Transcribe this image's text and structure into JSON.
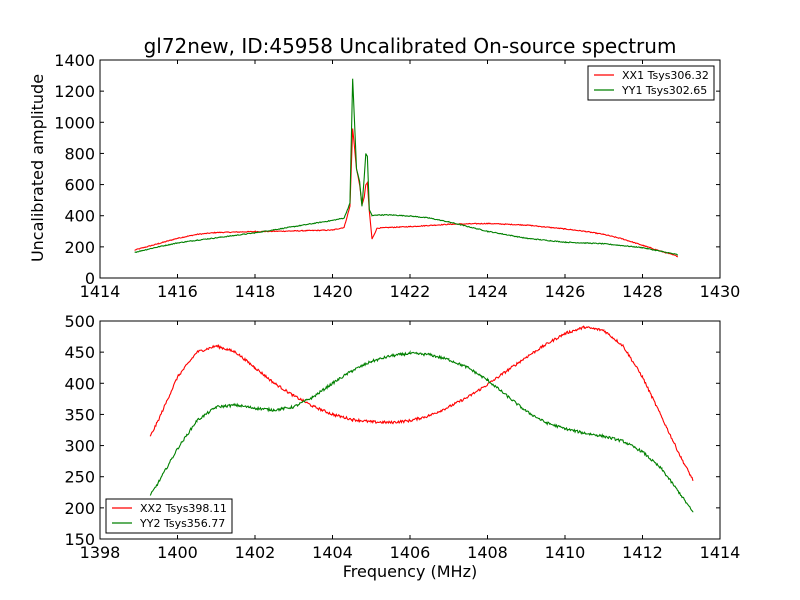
{
  "figure": {
    "title": "gl72new, ID:45958 Uncalibrated On-source spectrum",
    "xlabel": "Frequency (MHz)",
    "ylabel": "Uncalibrated amplitude"
  },
  "colors": {
    "red": "#ff0000",
    "green": "#008000"
  },
  "chart_data": [
    {
      "type": "line",
      "title": "gl72new, ID:45958 Uncalibrated On-source spectrum",
      "xlabel": "",
      "ylabel": "Uncalibrated amplitude",
      "xlim": [
        1414,
        1430
      ],
      "ylim": [
        0,
        1400
      ],
      "xticks": [
        1414,
        1416,
        1418,
        1420,
        1422,
        1424,
        1426,
        1428,
        1430
      ],
      "yticks": [
        0,
        200,
        400,
        600,
        800,
        1000,
        1200,
        1400
      ],
      "legend_position": "top-right",
      "grid": false,
      "series": [
        {
          "name": "XX1 Tsys306.32",
          "color": "#ff0000",
          "x": [
            1414.9,
            1415.5,
            1416,
            1416.5,
            1417,
            1418,
            1419,
            1420,
            1420.3,
            1420.45,
            1420.52,
            1420.56,
            1420.62,
            1420.7,
            1420.76,
            1420.82,
            1420.86,
            1420.9,
            1420.95,
            1421.02,
            1421.15,
            1421.5,
            1422,
            1423,
            1424,
            1425,
            1426,
            1426.5,
            1427,
            1427.5,
            1428,
            1428.5,
            1428.9
          ],
          "y": [
            180,
            220,
            255,
            280,
            292,
            298,
            302,
            308,
            325,
            460,
            960,
            860,
            700,
            600,
            470,
            520,
            600,
            610,
            430,
            250,
            320,
            325,
            330,
            345,
            350,
            340,
            315,
            300,
            280,
            250,
            210,
            170,
            140
          ]
        },
        {
          "name": "YY1 Tsys302.65",
          "color": "#008000",
          "x": [
            1414.9,
            1415.5,
            1416,
            1416.5,
            1417,
            1418,
            1419,
            1420,
            1420.3,
            1420.45,
            1420.52,
            1420.56,
            1420.62,
            1420.7,
            1420.76,
            1420.82,
            1420.86,
            1420.9,
            1420.95,
            1421.02,
            1421.15,
            1421.5,
            1422,
            1422.5,
            1423,
            1424,
            1425,
            1426,
            1427,
            1428,
            1428.5,
            1428.9
          ],
          "y": [
            165,
            200,
            225,
            243,
            258,
            290,
            330,
            370,
            385,
            480,
            1280,
            1050,
            700,
            620,
            460,
            650,
            800,
            780,
            440,
            400,
            405,
            405,
            398,
            385,
            360,
            300,
            255,
            230,
            220,
            195,
            170,
            150
          ]
        }
      ]
    },
    {
      "type": "line",
      "title": "",
      "xlabel": "Frequency (MHz)",
      "ylabel": "",
      "xlim": [
        1398,
        1414
      ],
      "ylim": [
        150,
        500
      ],
      "xticks": [
        1398,
        1400,
        1402,
        1404,
        1406,
        1408,
        1410,
        1412,
        1414
      ],
      "yticks": [
        150,
        200,
        250,
        300,
        350,
        400,
        450,
        500
      ],
      "legend_position": "bottom-left",
      "grid": false,
      "series": [
        {
          "name": "XX2 Tsys398.11",
          "color": "#ff0000",
          "x": [
            1399.3,
            1399.5,
            1400,
            1400.5,
            1401,
            1401.5,
            1402,
            1402.5,
            1403,
            1403.5,
            1404,
            1404.5,
            1405,
            1405.5,
            1406,
            1406.5,
            1407,
            1407.5,
            1408,
            1408.5,
            1409,
            1409.5,
            1410,
            1410.5,
            1411,
            1411.5,
            1412,
            1412.5,
            1413,
            1413.3
          ],
          "y": [
            315,
            340,
            410,
            450,
            460,
            450,
            425,
            400,
            380,
            363,
            350,
            342,
            338,
            337,
            340,
            348,
            362,
            378,
            398,
            420,
            442,
            462,
            480,
            490,
            485,
            460,
            410,
            345,
            280,
            245
          ]
        },
        {
          "name": "YY2 Tsys356.77",
          "color": "#008000",
          "x": [
            1399.3,
            1399.5,
            1400,
            1400.5,
            1401,
            1401.5,
            1402,
            1402.5,
            1403,
            1403.5,
            1404,
            1404.5,
            1405,
            1405.5,
            1406,
            1406.5,
            1407,
            1407.5,
            1408,
            1408.5,
            1409,
            1409.5,
            1410,
            1410.5,
            1411,
            1411.5,
            1412,
            1412.5,
            1413,
            1413.3
          ],
          "y": [
            220,
            240,
            295,
            340,
            362,
            365,
            360,
            357,
            362,
            378,
            400,
            420,
            435,
            444,
            448,
            446,
            438,
            425,
            405,
            380,
            355,
            337,
            327,
            320,
            315,
            307,
            290,
            262,
            220,
            193
          ]
        }
      ]
    }
  ]
}
